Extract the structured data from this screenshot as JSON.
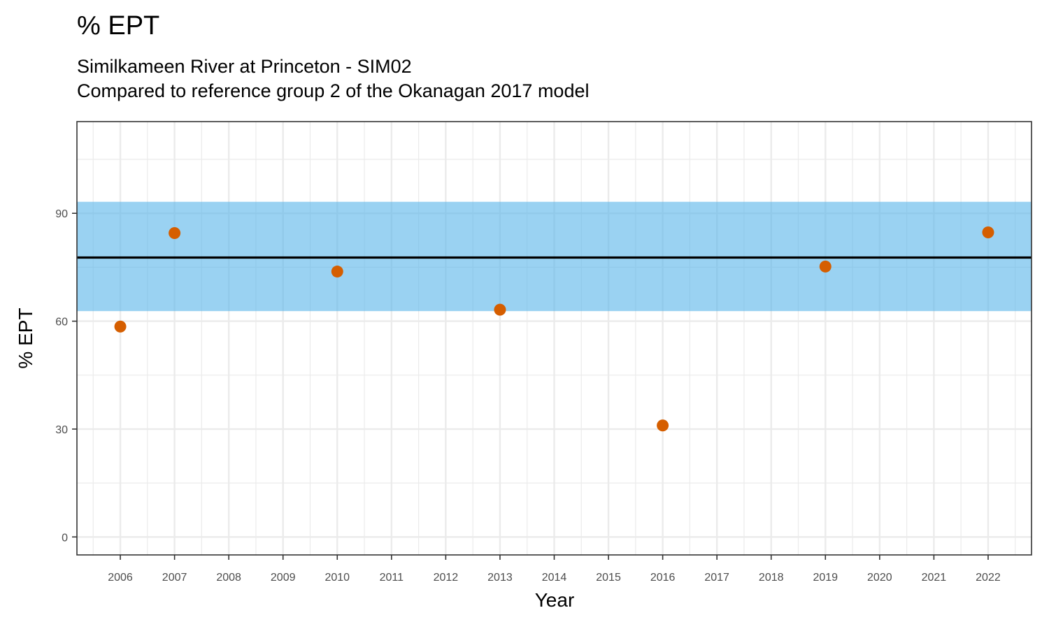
{
  "chart_data": {
    "type": "scatter",
    "title": "% EPT",
    "subtitle_line1": "Similkameen River at Princeton - SIM02",
    "subtitle_line2": "Compared to reference group 2 of the Okanagan 2017 model",
    "xlabel": "Year",
    "ylabel": "% EPT",
    "xlim": [
      2005.2,
      2022.8
    ],
    "ylim": [
      -5,
      115.5
    ],
    "x_ticks": [
      2006,
      2007,
      2008,
      2009,
      2010,
      2011,
      2012,
      2013,
      2014,
      2015,
      2016,
      2017,
      2018,
      2019,
      2020,
      2021,
      2022
    ],
    "y_ticks": [
      0,
      30,
      60,
      90
    ],
    "points": [
      {
        "x": 2006,
        "y": 58.5
      },
      {
        "x": 2007,
        "y": 84.5
      },
      {
        "x": 2010,
        "y": 73.8
      },
      {
        "x": 2013,
        "y": 63.2
      },
      {
        "x": 2016,
        "y": 31.0
      },
      {
        "x": 2019,
        "y": 75.2
      },
      {
        "x": 2022,
        "y": 84.7
      }
    ],
    "reference_band": {
      "low": 62.8,
      "high": 93.2
    },
    "reference_line": 77.7,
    "grid": true,
    "colors": {
      "point": "#D55E00",
      "band": "#56B4E9",
      "line": "#000000",
      "grid_major": "#EBEBEB",
      "panel_border": "#333333"
    }
  }
}
